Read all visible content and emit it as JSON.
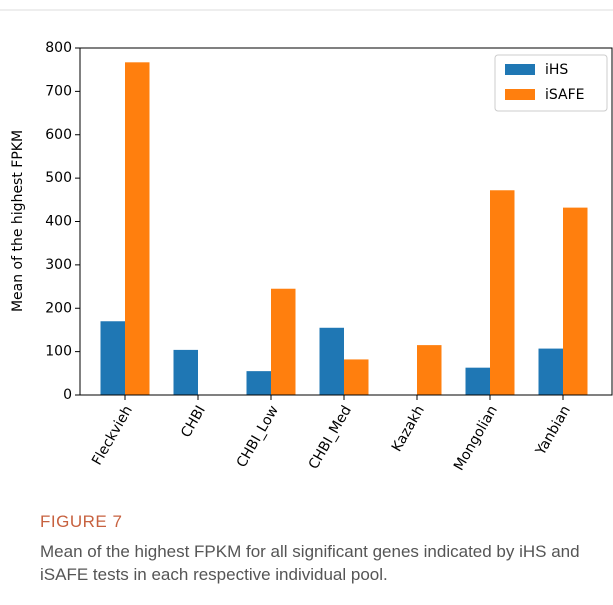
{
  "chart_data": {
    "type": "bar",
    "ylabel": "Mean of the highest FPKM",
    "categories": [
      "Fleckvieh",
      "CHBI",
      "CHBI_Low",
      "CHBI_Med",
      "Kazakh",
      "Mongolian",
      "Yanbian"
    ],
    "series": [
      {
        "name": "iHS",
        "color": "#1f77b4",
        "values": [
          170,
          104,
          55,
          155,
          null,
          63,
          107
        ]
      },
      {
        "name": "iSAFE",
        "color": "#ff7f0e",
        "values": [
          767,
          null,
          245,
          82,
          115,
          472,
          432
        ]
      }
    ],
    "ylim": [
      0,
      800
    ],
    "yticks": [
      0,
      100,
      200,
      300,
      400,
      500,
      600,
      700,
      800
    ],
    "legend": "upper right"
  },
  "figure_label": "FIGURE 7",
  "caption": "Mean of the highest FPKM for all significant genes indicated by iHS and iSAFE tests in each respective individual pool."
}
